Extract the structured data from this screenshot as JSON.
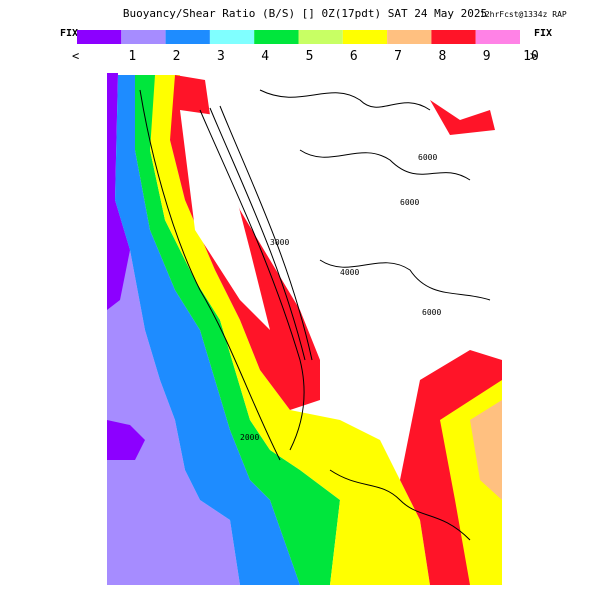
{
  "header": {
    "title": "Buoyancy/Shear Ratio (B/S) [] 0Z(17pdt) SAT 24 May 2025",
    "model": "12hrFcst@1334z RAP"
  },
  "legend": {
    "fix_left": "FIX",
    "fix_right": "FIX",
    "prev": "<",
    "next": ">",
    "colors": [
      "#8c00ff",
      "#a68cff",
      "#1e8cff",
      "#80ffff",
      "#00e63c",
      "#c8ff64",
      "#ffff00",
      "#ffc080",
      "#ff1428",
      "#ff82e6"
    ],
    "labels": [
      "1",
      "2",
      "3",
      "4",
      "5",
      "6",
      "7",
      "8",
      "9",
      "10"
    ]
  },
  "map": {
    "contour_labels": [
      "6000",
      "6000",
      "6000",
      "3000",
      "2000",
      "4000"
    ]
  }
}
